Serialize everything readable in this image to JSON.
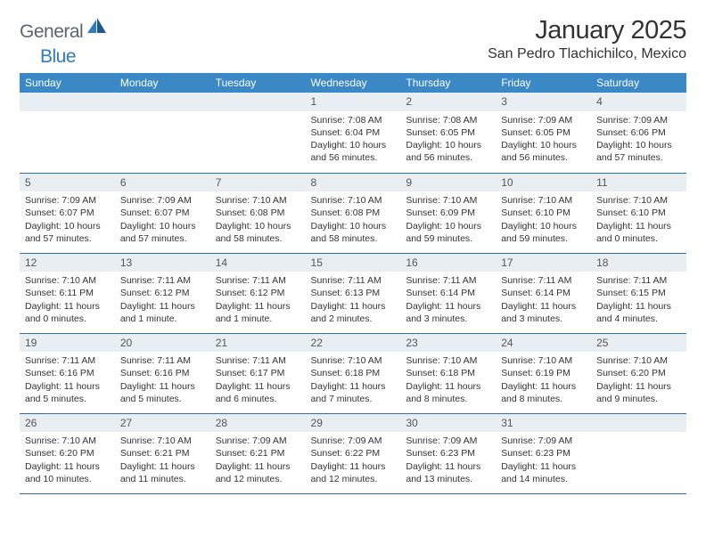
{
  "logo": {
    "text1": "General",
    "text2": "Blue"
  },
  "title": "January 2025",
  "location": "San Pedro Tlachichilco, Mexico",
  "colors": {
    "header_bg": "#3b88c6",
    "header_text": "#ffffff",
    "daynum_bg": "#e9eef2",
    "border": "#2f6fa6",
    "logo_gray": "#5a6570",
    "logo_blue": "#2f7bbf"
  },
  "weekdays": [
    "Sunday",
    "Monday",
    "Tuesday",
    "Wednesday",
    "Thursday",
    "Friday",
    "Saturday"
  ],
  "weeks": [
    [
      {
        "n": "",
        "sunrise": "",
        "sunset": "",
        "daylight": ""
      },
      {
        "n": "",
        "sunrise": "",
        "sunset": "",
        "daylight": ""
      },
      {
        "n": "",
        "sunrise": "",
        "sunset": "",
        "daylight": ""
      },
      {
        "n": "1",
        "sunrise": "Sunrise: 7:08 AM",
        "sunset": "Sunset: 6:04 PM",
        "daylight": "Daylight: 10 hours and 56 minutes."
      },
      {
        "n": "2",
        "sunrise": "Sunrise: 7:08 AM",
        "sunset": "Sunset: 6:05 PM",
        "daylight": "Daylight: 10 hours and 56 minutes."
      },
      {
        "n": "3",
        "sunrise": "Sunrise: 7:09 AM",
        "sunset": "Sunset: 6:05 PM",
        "daylight": "Daylight: 10 hours and 56 minutes."
      },
      {
        "n": "4",
        "sunrise": "Sunrise: 7:09 AM",
        "sunset": "Sunset: 6:06 PM",
        "daylight": "Daylight: 10 hours and 57 minutes."
      }
    ],
    [
      {
        "n": "5",
        "sunrise": "Sunrise: 7:09 AM",
        "sunset": "Sunset: 6:07 PM",
        "daylight": "Daylight: 10 hours and 57 minutes."
      },
      {
        "n": "6",
        "sunrise": "Sunrise: 7:09 AM",
        "sunset": "Sunset: 6:07 PM",
        "daylight": "Daylight: 10 hours and 57 minutes."
      },
      {
        "n": "7",
        "sunrise": "Sunrise: 7:10 AM",
        "sunset": "Sunset: 6:08 PM",
        "daylight": "Daylight: 10 hours and 58 minutes."
      },
      {
        "n": "8",
        "sunrise": "Sunrise: 7:10 AM",
        "sunset": "Sunset: 6:08 PM",
        "daylight": "Daylight: 10 hours and 58 minutes."
      },
      {
        "n": "9",
        "sunrise": "Sunrise: 7:10 AM",
        "sunset": "Sunset: 6:09 PM",
        "daylight": "Daylight: 10 hours and 59 minutes."
      },
      {
        "n": "10",
        "sunrise": "Sunrise: 7:10 AM",
        "sunset": "Sunset: 6:10 PM",
        "daylight": "Daylight: 10 hours and 59 minutes."
      },
      {
        "n": "11",
        "sunrise": "Sunrise: 7:10 AM",
        "sunset": "Sunset: 6:10 PM",
        "daylight": "Daylight: 11 hours and 0 minutes."
      }
    ],
    [
      {
        "n": "12",
        "sunrise": "Sunrise: 7:10 AM",
        "sunset": "Sunset: 6:11 PM",
        "daylight": "Daylight: 11 hours and 0 minutes."
      },
      {
        "n": "13",
        "sunrise": "Sunrise: 7:11 AM",
        "sunset": "Sunset: 6:12 PM",
        "daylight": "Daylight: 11 hours and 1 minute."
      },
      {
        "n": "14",
        "sunrise": "Sunrise: 7:11 AM",
        "sunset": "Sunset: 6:12 PM",
        "daylight": "Daylight: 11 hours and 1 minute."
      },
      {
        "n": "15",
        "sunrise": "Sunrise: 7:11 AM",
        "sunset": "Sunset: 6:13 PM",
        "daylight": "Daylight: 11 hours and 2 minutes."
      },
      {
        "n": "16",
        "sunrise": "Sunrise: 7:11 AM",
        "sunset": "Sunset: 6:14 PM",
        "daylight": "Daylight: 11 hours and 3 minutes."
      },
      {
        "n": "17",
        "sunrise": "Sunrise: 7:11 AM",
        "sunset": "Sunset: 6:14 PM",
        "daylight": "Daylight: 11 hours and 3 minutes."
      },
      {
        "n": "18",
        "sunrise": "Sunrise: 7:11 AM",
        "sunset": "Sunset: 6:15 PM",
        "daylight": "Daylight: 11 hours and 4 minutes."
      }
    ],
    [
      {
        "n": "19",
        "sunrise": "Sunrise: 7:11 AM",
        "sunset": "Sunset: 6:16 PM",
        "daylight": "Daylight: 11 hours and 5 minutes."
      },
      {
        "n": "20",
        "sunrise": "Sunrise: 7:11 AM",
        "sunset": "Sunset: 6:16 PM",
        "daylight": "Daylight: 11 hours and 5 minutes."
      },
      {
        "n": "21",
        "sunrise": "Sunrise: 7:11 AM",
        "sunset": "Sunset: 6:17 PM",
        "daylight": "Daylight: 11 hours and 6 minutes."
      },
      {
        "n": "22",
        "sunrise": "Sunrise: 7:10 AM",
        "sunset": "Sunset: 6:18 PM",
        "daylight": "Daylight: 11 hours and 7 minutes."
      },
      {
        "n": "23",
        "sunrise": "Sunrise: 7:10 AM",
        "sunset": "Sunset: 6:18 PM",
        "daylight": "Daylight: 11 hours and 8 minutes."
      },
      {
        "n": "24",
        "sunrise": "Sunrise: 7:10 AM",
        "sunset": "Sunset: 6:19 PM",
        "daylight": "Daylight: 11 hours and 8 minutes."
      },
      {
        "n": "25",
        "sunrise": "Sunrise: 7:10 AM",
        "sunset": "Sunset: 6:20 PM",
        "daylight": "Daylight: 11 hours and 9 minutes."
      }
    ],
    [
      {
        "n": "26",
        "sunrise": "Sunrise: 7:10 AM",
        "sunset": "Sunset: 6:20 PM",
        "daylight": "Daylight: 11 hours and 10 minutes."
      },
      {
        "n": "27",
        "sunrise": "Sunrise: 7:10 AM",
        "sunset": "Sunset: 6:21 PM",
        "daylight": "Daylight: 11 hours and 11 minutes."
      },
      {
        "n": "28",
        "sunrise": "Sunrise: 7:09 AM",
        "sunset": "Sunset: 6:21 PM",
        "daylight": "Daylight: 11 hours and 12 minutes."
      },
      {
        "n": "29",
        "sunrise": "Sunrise: 7:09 AM",
        "sunset": "Sunset: 6:22 PM",
        "daylight": "Daylight: 11 hours and 12 minutes."
      },
      {
        "n": "30",
        "sunrise": "Sunrise: 7:09 AM",
        "sunset": "Sunset: 6:23 PM",
        "daylight": "Daylight: 11 hours and 13 minutes."
      },
      {
        "n": "31",
        "sunrise": "Sunrise: 7:09 AM",
        "sunset": "Sunset: 6:23 PM",
        "daylight": "Daylight: 11 hours and 14 minutes."
      },
      {
        "n": "",
        "sunrise": "",
        "sunset": "",
        "daylight": ""
      }
    ]
  ]
}
